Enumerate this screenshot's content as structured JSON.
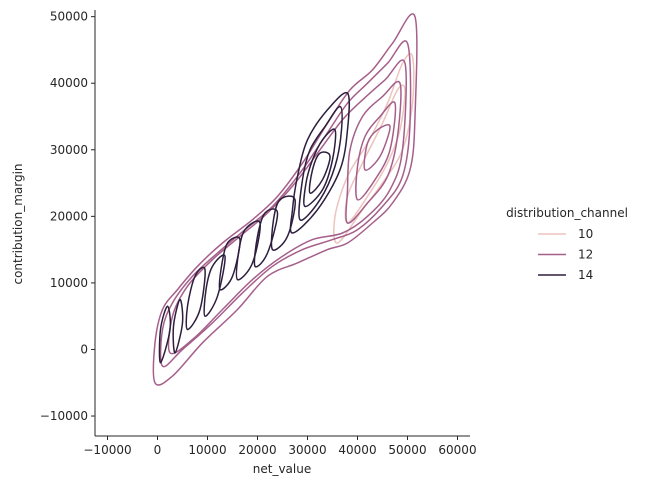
{
  "chart_data": {
    "type": "kde-contour",
    "xlabel": "net_value",
    "ylabel": "contribution_margin",
    "xlim": [
      -12500,
      62500
    ],
    "ylim": [
      -13000,
      51000
    ],
    "xticks": [
      -10000,
      0,
      10000,
      20000,
      30000,
      40000,
      50000,
      60000
    ],
    "yticks": [
      -10000,
      0,
      10000,
      20000,
      30000,
      40000,
      50000
    ],
    "xtick_labels": [
      "−10000",
      "0",
      "10000",
      "20000",
      "30000",
      "40000",
      "50000",
      "60000"
    ],
    "ytick_labels": [
      "−10000",
      "0",
      "10000",
      "20000",
      "30000",
      "40000",
      "50000"
    ],
    "grid": false,
    "legend": {
      "title": "distribution_channel",
      "placement": "right",
      "entries": [
        "10",
        "12",
        "14"
      ]
    },
    "series": [
      {
        "name": "10",
        "color": "#ecc3bd",
        "contours": [
          [
            [
              36000,
              16000
            ],
            [
              41000,
              21000
            ],
            [
              45000,
              25000
            ],
            [
              49000,
              30000
            ],
            [
              51000,
              37000
            ],
            [
              51000,
              44000
            ],
            [
              49000,
              43000
            ],
            [
              46000,
              37000
            ],
            [
              42000,
              31000
            ],
            [
              38000,
              26000
            ],
            [
              35500,
              20000
            ],
            [
              36000,
              16000
            ]
          ],
          [
            [
              38000,
              19000
            ],
            [
              42000,
              23000
            ],
            [
              46000,
              28000
            ],
            [
              48500,
              33000
            ],
            [
              49500,
              39000
            ],
            [
              48000,
              39000
            ],
            [
              45000,
              34000
            ],
            [
              41000,
              28000
            ],
            [
              38000,
              23000
            ],
            [
              38000,
              19000
            ]
          ]
        ]
      },
      {
        "name": "12",
        "color": "#a55f8a",
        "contours": [
          [
            [
              -500,
              -5000
            ],
            [
              3000,
              -4000
            ],
            [
              9000,
              1000
            ],
            [
              16000,
              6000
            ],
            [
              22000,
              11000
            ],
            [
              28000,
              13000
            ],
            [
              34000,
              15000
            ],
            [
              38000,
              16000
            ],
            [
              43000,
              19000
            ],
            [
              47000,
              22000
            ],
            [
              50500,
              27000
            ],
            [
              51500,
              35000
            ],
            [
              51500,
              50000
            ],
            [
              47000,
              46000
            ],
            [
              43000,
              42000
            ],
            [
              38500,
              39000
            ],
            [
              34000,
              34000
            ],
            [
              29000,
              28000
            ],
            [
              24000,
              23000
            ],
            [
              19000,
              19500
            ],
            [
              13000,
              16000
            ],
            [
              8000,
              12500
            ],
            [
              4000,
              9000
            ],
            [
              1000,
              6000
            ],
            [
              -500,
              1000
            ],
            [
              -500,
              -5000
            ]
          ],
          [
            [
              1000,
              -2500
            ],
            [
              5000,
              0
            ],
            [
              11000,
              4000
            ],
            [
              17000,
              8500
            ],
            [
              23000,
              12500
            ],
            [
              29000,
              15000
            ],
            [
              35000,
              16500
            ],
            [
              40000,
              18000
            ],
            [
              45000,
              21500
            ],
            [
              49000,
              26000
            ],
            [
              50500,
              34000
            ],
            [
              50000,
              46000
            ],
            [
              46000,
              43000
            ],
            [
              42000,
              40000
            ],
            [
              38000,
              37000
            ],
            [
              33500,
              32000
            ],
            [
              28500,
              26500
            ],
            [
              23000,
              21500
            ],
            [
              17500,
              18000
            ],
            [
              12000,
              14500
            ],
            [
              7000,
              11000
            ],
            [
              3000,
              7000
            ],
            [
              1000,
              3000
            ],
            [
              1000,
              -2500
            ]
          ],
          [
            [
              2500,
              -500
            ],
            [
              7000,
              1500
            ],
            [
              13000,
              6000
            ],
            [
              19000,
              10500
            ],
            [
              25000,
              14000
            ],
            [
              31000,
              16500
            ],
            [
              37000,
              17500
            ],
            [
              42000,
              20000
            ],
            [
              46500,
              24000
            ],
            [
              49000,
              30000
            ],
            [
              49500,
              43000
            ],
            [
              45500,
              40500
            ],
            [
              41000,
              37500
            ],
            [
              37000,
              34500
            ],
            [
              32500,
              30000
            ],
            [
              27500,
              25000
            ],
            [
              22000,
              20500
            ],
            [
              16500,
              17000
            ],
            [
              11000,
              13500
            ],
            [
              6000,
              9500
            ],
            [
              3000,
              5000
            ],
            [
              2500,
              -500
            ]
          ],
          [
            [
              38000,
              19000
            ],
            [
              42000,
              22000
            ],
            [
              46000,
              26000
            ],
            [
              48000,
              32000
            ],
            [
              48500,
              40000
            ],
            [
              45000,
              38000
            ],
            [
              41000,
              35000
            ],
            [
              38500,
              30000
            ],
            [
              38000,
              24000
            ],
            [
              38000,
              19000
            ]
          ],
          [
            [
              40000,
              22500
            ],
            [
              43500,
              25500
            ],
            [
              46500,
              30000
            ],
            [
              47500,
              37000
            ],
            [
              44500,
              35000
            ],
            [
              41500,
              32000
            ],
            [
              40000,
              27500
            ],
            [
              40000,
              22500
            ]
          ],
          [
            [
              41500,
              27000
            ],
            [
              44500,
              29000
            ],
            [
              46500,
              33500
            ],
            [
              44000,
              33000
            ],
            [
              42000,
              31000
            ],
            [
              41500,
              27000
            ]
          ]
        ]
      },
      {
        "name": "14",
        "color": "#2d1e3e",
        "contours": [
          [
            [
              600,
              -2000
            ],
            [
              2500,
              3000
            ],
            [
              2000,
              6500
            ],
            [
              600,
              3000
            ],
            [
              600,
              -2000
            ]
          ],
          [
            [
              3500,
              -500
            ],
            [
              5000,
              4000
            ],
            [
              4500,
              7500
            ],
            [
              3200,
              3500
            ],
            [
              3500,
              -500
            ]
          ],
          [
            [
              6000,
              3000
            ],
            [
              8500,
              6000
            ],
            [
              9500,
              12000
            ],
            [
              7500,
              11000
            ],
            [
              6000,
              6500
            ],
            [
              6000,
              3000
            ]
          ],
          [
            [
              9500,
              5000
            ],
            [
              12000,
              8000
            ],
            [
              13500,
              14000
            ],
            [
              11000,
              12500
            ],
            [
              9700,
              9000
            ],
            [
              9500,
              5000
            ]
          ],
          [
            [
              12500,
              9000
            ],
            [
              15000,
              11000
            ],
            [
              16500,
              16500
            ],
            [
              14000,
              16000
            ],
            [
              12800,
              12500
            ],
            [
              12500,
              9000
            ]
          ],
          [
            [
              16000,
              10500
            ],
            [
              19000,
              13000
            ],
            [
              20500,
              19000
            ],
            [
              17500,
              18000
            ],
            [
              16200,
              14500
            ],
            [
              16000,
              10500
            ]
          ],
          [
            [
              19500,
              12500
            ],
            [
              22000,
              14500
            ],
            [
              24000,
              20500
            ],
            [
              21500,
              20500
            ],
            [
              20000,
              17000
            ],
            [
              19500,
              12500
            ]
          ],
          [
            [
              23000,
              15000
            ],
            [
              26000,
              17000
            ],
            [
              27500,
              22500
            ],
            [
              24500,
              22500
            ],
            [
              23200,
              19500
            ],
            [
              23000,
              15000
            ]
          ],
          [
            [
              27000,
              17500
            ],
            [
              32000,
              21000
            ],
            [
              36500,
              27000
            ],
            [
              38000,
              33000
            ],
            [
              38000,
              38500
            ],
            [
              34000,
              36000
            ],
            [
              30000,
              31500
            ],
            [
              28000,
              26000
            ],
            [
              27000,
              21000
            ],
            [
              27000,
              17500
            ]
          ],
          [
            [
              28500,
              19500
            ],
            [
              32500,
              22500
            ],
            [
              35500,
              27500
            ],
            [
              36800,
              33000
            ],
            [
              36500,
              36500
            ],
            [
              33500,
              33500
            ],
            [
              30500,
              30000
            ],
            [
              29000,
              25500
            ],
            [
              28500,
              19500
            ]
          ],
          [
            [
              29500,
              21500
            ],
            [
              33000,
              24000
            ],
            [
              35000,
              28500
            ],
            [
              35500,
              33000
            ],
            [
              33000,
              31500
            ],
            [
              31000,
              28500
            ],
            [
              29700,
              25000
            ],
            [
              29500,
              21500
            ]
          ],
          [
            [
              30500,
              23500
            ],
            [
              33000,
              25500
            ],
            [
              34500,
              29000
            ],
            [
              32500,
              29500
            ],
            [
              31000,
              27000
            ],
            [
              30500,
              23500
            ]
          ]
        ]
      }
    ]
  }
}
